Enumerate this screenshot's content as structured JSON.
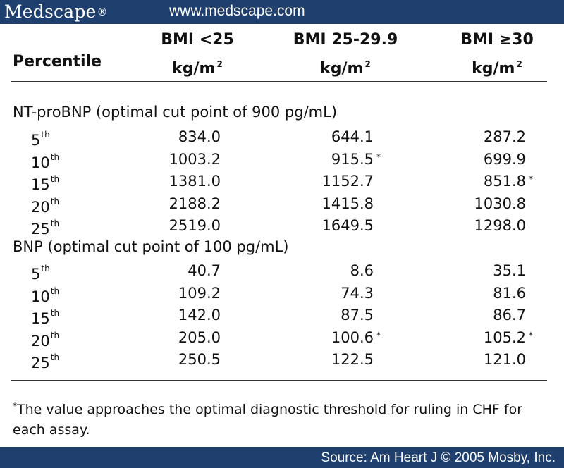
{
  "banner": {
    "logo_text": "Medscape",
    "logo_mark": "®",
    "url": "www.medscape.com"
  },
  "header": {
    "col0": "Percentile",
    "col1_line1": "BMI <25",
    "col2_line1": "BMI 25-29.9",
    "col3_line1": "BMI ≥30",
    "unit": "kg/m",
    "unit_exp": "2"
  },
  "sections": [
    {
      "title": "NT-proBNP (optimal cut point of 900 pg/mL)",
      "rows": [
        {
          "p": "5",
          "sfx": "th",
          "c1": "834.0",
          "c1a": "",
          "c2": "644.1",
          "c2a": "",
          "c3": "287.2",
          "c3a": ""
        },
        {
          "p": "10",
          "sfx": "th",
          "c1": "1003.2",
          "c1a": "",
          "c2": "915.5",
          "c2a": "*",
          "c3": "699.9",
          "c3a": ""
        },
        {
          "p": "15",
          "sfx": "th",
          "c1": "1381.0",
          "c1a": "",
          "c2": "1152.7",
          "c2a": "",
          "c3": "851.8",
          "c3a": "*"
        },
        {
          "p": "20",
          "sfx": "th",
          "c1": "2188.2",
          "c1a": "",
          "c2": "1415.8",
          "c2a": "",
          "c3": "1030.8",
          "c3a": ""
        },
        {
          "p": "25",
          "sfx": "th",
          "c1": "2519.0",
          "c1a": "",
          "c2": "1649.5",
          "c2a": "",
          "c3": "1298.0",
          "c3a": ""
        }
      ]
    },
    {
      "title": "BNP (optimal cut point of 100 pg/mL)",
      "rows": [
        {
          "p": "5",
          "sfx": "th",
          "c1": "40.7",
          "c1a": "",
          "c2": "8.6",
          "c2a": "",
          "c3": "35.1",
          "c3a": ""
        },
        {
          "p": "10",
          "sfx": "th",
          "c1": "109.2",
          "c1a": "",
          "c2": "74.3",
          "c2a": "",
          "c3": "81.6",
          "c3a": ""
        },
        {
          "p": "15",
          "sfx": "th",
          "c1": "142.0",
          "c1a": "",
          "c2": "87.5",
          "c2a": "",
          "c3": "86.7",
          "c3a": ""
        },
        {
          "p": "20",
          "sfx": "th",
          "c1": "205.0",
          "c1a": "",
          "c2": "100.6",
          "c2a": "*",
          "c3": "105.2",
          "c3a": "*"
        },
        {
          "p": "25",
          "sfx": "th",
          "c1": "250.5",
          "c1a": "",
          "c2": "122.5",
          "c2a": "",
          "c3": "121.0",
          "c3a": ""
        }
      ]
    }
  ],
  "footnote": {
    "mark": "*",
    "text": "The value approaches the optimal diagnostic threshold for ruling in CHF for each assay."
  },
  "source": "Source: Am Heart J © 2005 Mosby, Inc."
}
